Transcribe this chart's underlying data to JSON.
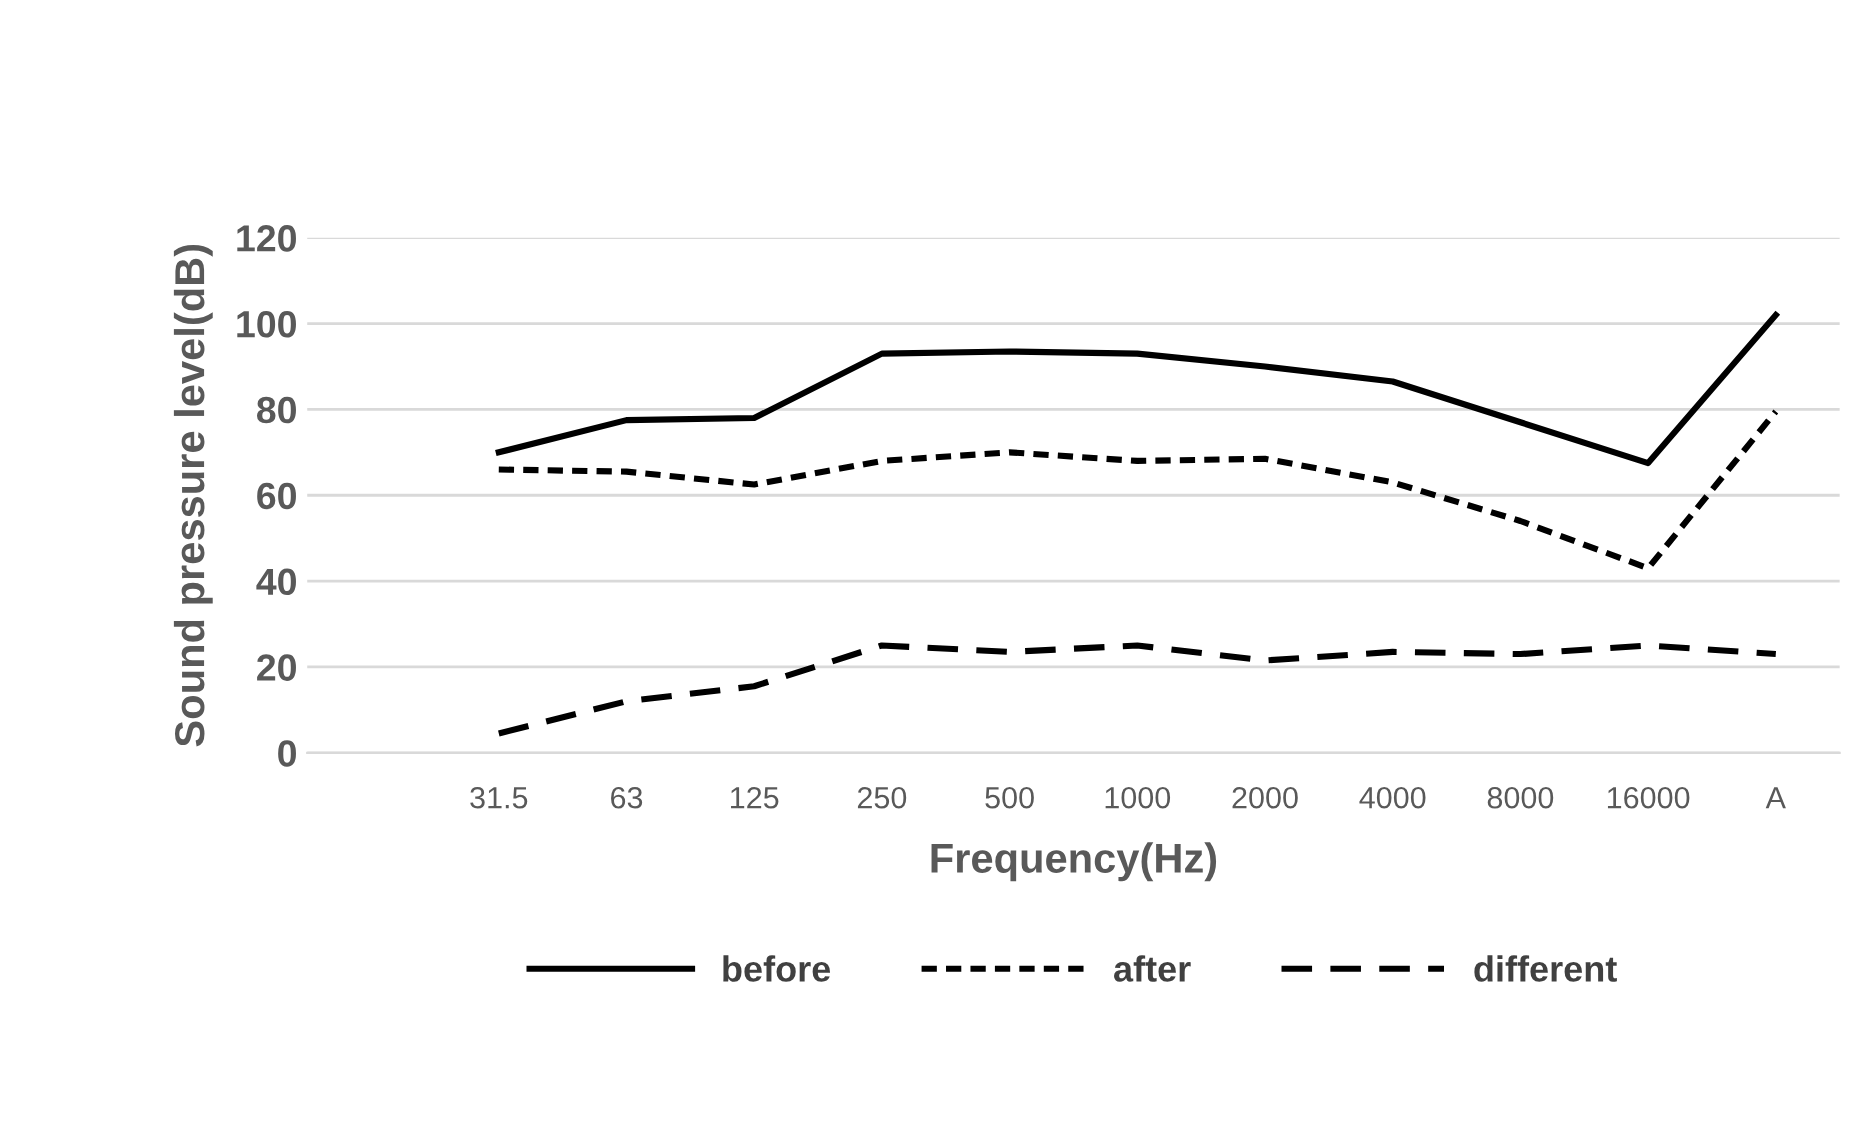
{
  "chart_data": {
    "type": "line",
    "xlabel": "Frequency(Hz)",
    "ylabel": "Sound pressure level(dB)",
    "categories": [
      null,
      "31.5",
      "63",
      "125",
      "250",
      "500",
      "1000",
      "2000",
      "4000",
      "8000",
      "16000",
      "A"
    ],
    "series": [
      {
        "name": "before",
        "color": "#000000",
        "line_style": "solid",
        "values": [
          null,
          70,
          77.5,
          78,
          93,
          93.5,
          93,
          90,
          86.5,
          77,
          67.5,
          102
        ]
      },
      {
        "name": "after",
        "color": "#000000",
        "line_style": "dotted",
        "values": [
          null,
          66,
          65.5,
          62.5,
          68,
          70,
          68,
          68.5,
          63,
          54,
          43,
          79.5
        ]
      },
      {
        "name": "different",
        "color": "#000000",
        "line_style": "dashed",
        "values": [
          null,
          4.5,
          12,
          15.5,
          25,
          23.5,
          25,
          21.5,
          23.5,
          23,
          25,
          23
        ]
      }
    ],
    "ylim": [
      0,
      120
    ],
    "yticks": [
      0,
      20,
      40,
      60,
      80,
      100,
      120
    ],
    "grid": "y",
    "legend": "bottom",
    "marker": "none"
  }
}
